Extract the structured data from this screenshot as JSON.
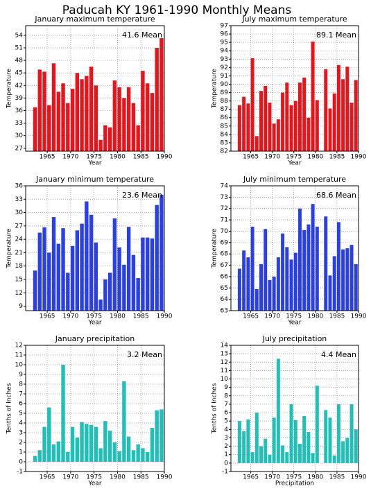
{
  "title": "Paducah KY 1961-1990 Monthly Means",
  "chart_data": [
    {
      "type": "bar",
      "title": "January maximum temperature",
      "annotation": "41.6 Mean",
      "ylabel": "Temperature",
      "xlabel": "Year",
      "color": "#e8141c",
      "grid": true,
      "x": [
        1962,
        1963,
        1964,
        1965,
        1966,
        1967,
        1968,
        1969,
        1970,
        1971,
        1972,
        1973,
        1974,
        1975,
        1976,
        1977,
        1978,
        1979,
        1980,
        1981,
        1982,
        1983,
        1984,
        1985,
        1986,
        1987,
        1988,
        1989
      ],
      "values": [
        36.8,
        45.8,
        45.3,
        37.3,
        47.3,
        40.5,
        42.5,
        37.8,
        41.2,
        45,
        43.5,
        44.3,
        46.5,
        42,
        29,
        32.5,
        32,
        43.2,
        41.6,
        39,
        41.6,
        37.8,
        32.5,
        45.5,
        42.5,
        40.2,
        51,
        53.3
      ],
      "xlim": [
        1960.4,
        1990
      ],
      "xticks": [
        1965,
        1970,
        1975,
        1980,
        1985,
        1990
      ],
      "ylim": [
        26.3,
        56.3
      ],
      "yticks": [
        27,
        30,
        33,
        36,
        39,
        42,
        45,
        48,
        51,
        54
      ]
    },
    {
      "type": "bar",
      "title": "July maximum temperature",
      "annotation": "89.1 Mean",
      "ylabel": "Temperature",
      "xlabel": "Year",
      "color": "#e8141c",
      "grid": true,
      "x": [
        1962,
        1963,
        1964,
        1965,
        1966,
        1967,
        1968,
        1969,
        1970,
        1971,
        1972,
        1973,
        1974,
        1975,
        1976,
        1977,
        1978,
        1979,
        1980,
        1981,
        1982,
        1983,
        1984,
        1985,
        1986,
        1987,
        1988,
        1989
      ],
      "values": [
        87.5,
        88.5,
        87.7,
        93.1,
        83.8,
        89.2,
        89.8,
        87.8,
        85.3,
        85.8,
        89,
        90.2,
        87.5,
        88,
        90.2,
        90.8,
        86,
        95.1,
        88.1,
        null,
        91.8,
        87.1,
        88.9,
        92.3,
        90.6,
        92.1,
        87.8,
        90.5
      ],
      "xlim": [
        1960.4,
        1990
      ],
      "xticks": [
        1965,
        1970,
        1975,
        1980,
        1985,
        1990
      ],
      "ylim": [
        82,
        97
      ],
      "yticks": [
        82,
        83,
        84,
        85,
        86,
        87,
        88,
        89,
        90,
        91,
        92,
        93,
        94,
        95,
        96,
        97
      ]
    },
    {
      "type": "bar",
      "title": "January minimum temperature",
      "annotation": "23.6 Mean",
      "ylabel": "Temperature",
      "xlabel": "Year",
      "color": "#2a40e6",
      "grid": true,
      "x": [
        1962,
        1963,
        1964,
        1965,
        1966,
        1967,
        1968,
        1969,
        1970,
        1971,
        1972,
        1973,
        1974,
        1975,
        1976,
        1977,
        1978,
        1979,
        1980,
        1981,
        1982,
        1983,
        1984,
        1985,
        1986,
        1987,
        1988,
        1989
      ],
      "values": [
        17,
        25.5,
        26.7,
        21,
        29,
        23,
        26.5,
        16.5,
        22.5,
        26,
        27.5,
        32.5,
        29.5,
        23.3,
        10.5,
        15,
        16.5,
        28.7,
        22.2,
        18.3,
        26.8,
        20.5,
        15.3,
        24.4,
        24.4,
        24.2,
        31.7,
        34
      ],
      "xlim": [
        1960.4,
        1990
      ],
      "xticks": [
        1965,
        1970,
        1975,
        1980,
        1985,
        1990
      ],
      "ylim": [
        8,
        36
      ],
      "yticks": [
        9,
        12,
        15,
        18,
        21,
        24,
        27,
        30,
        33,
        36
      ]
    },
    {
      "type": "bar",
      "title": "July minimum temperature",
      "annotation": "68.6 Mean",
      "ylabel": "Temperature",
      "xlabel": "Year",
      "color": "#2a40e6",
      "grid": true,
      "x": [
        1962,
        1963,
        1964,
        1965,
        1966,
        1967,
        1968,
        1969,
        1970,
        1971,
        1972,
        1973,
        1974,
        1975,
        1976,
        1977,
        1978,
        1979,
        1980,
        1981,
        1982,
        1983,
        1984,
        1985,
        1986,
        1987,
        1988,
        1989
      ],
      "values": [
        66.7,
        68.3,
        67.7,
        70.4,
        64.9,
        67.1,
        70.2,
        65.7,
        66,
        67.7,
        69.8,
        68.6,
        67.5,
        68.1,
        72,
        70.1,
        70.6,
        72.4,
        70.4,
        null,
        71.3,
        66.1,
        67.8,
        70.8,
        68.4,
        68.5,
        68.8,
        67.1
      ],
      "xlim": [
        1960.4,
        1990
      ],
      "xticks": [
        1965,
        1970,
        1975,
        1980,
        1985,
        1990
      ],
      "ylim": [
        63,
        74
      ],
      "yticks": [
        63,
        64,
        65,
        66,
        67,
        68,
        69,
        70,
        71,
        72,
        73,
        74
      ]
    },
    {
      "type": "bar",
      "title": "January precipitation",
      "annotation": "3.2 Mean",
      "ylabel": "Tenths of Inches",
      "xlabel": "Year",
      "color": "#20c0b8",
      "grid": true,
      "x": [
        1962,
        1963,
        1964,
        1965,
        1966,
        1967,
        1968,
        1969,
        1970,
        1971,
        1972,
        1973,
        1974,
        1975,
        1976,
        1977,
        1978,
        1979,
        1980,
        1981,
        1982,
        1983,
        1984,
        1985,
        1986,
        1987,
        1988,
        1989
      ],
      "values": [
        0.6,
        1.2,
        3.6,
        5.6,
        1.8,
        2.1,
        10,
        1,
        3.6,
        2.5,
        4.1,
        3.9,
        3.8,
        3.6,
        1.4,
        4.2,
        3.2,
        2,
        1.1,
        8.3,
        2.6,
        1.2,
        1.8,
        1.4,
        1,
        3.5,
        5.3,
        5.4
      ],
      "xlim": [
        1960.4,
        1990
      ],
      "xticks": [
        1965,
        1970,
        1975,
        1980,
        1985,
        1990
      ],
      "ylim": [
        -1,
        12
      ],
      "yticks": [
        -1,
        0,
        1,
        2,
        3,
        4,
        5,
        6,
        7,
        8,
        9,
        10,
        11,
        12
      ]
    },
    {
      "type": "bar",
      "title": "July precipitation",
      "annotation": "4.4 Mean",
      "ylabel": "Tenths of Inches",
      "xlabel": "Precipitation",
      "color": "#20c0b8",
      "grid": true,
      "x": [
        1962,
        1963,
        1964,
        1965,
        1966,
        1967,
        1968,
        1969,
        1970,
        1971,
        1972,
        1973,
        1974,
        1975,
        1976,
        1977,
        1978,
        1979,
        1980,
        1981,
        1982,
        1983,
        1984,
        1985,
        1986,
        1987,
        1988,
        1989
      ],
      "values": [
        5,
        3.8,
        5.2,
        1.3,
        6,
        2,
        2.9,
        1,
        5.4,
        12.4,
        2.1,
        1.3,
        7,
        5.1,
        2.3,
        5.6,
        3.7,
        1.2,
        9.2,
        null,
        6.3,
        5.4,
        0.9,
        7,
        2.6,
        3,
        7,
        4
      ],
      "xlim": [
        1960.4,
        1990
      ],
      "xticks": [
        1965,
        1970,
        1975,
        1980,
        1985,
        1990
      ],
      "ylim": [
        -1,
        14
      ],
      "yticks": [
        -1,
        0,
        1,
        2,
        3,
        4,
        5,
        6,
        7,
        8,
        9,
        10,
        11,
        12,
        13,
        14
      ]
    }
  ]
}
